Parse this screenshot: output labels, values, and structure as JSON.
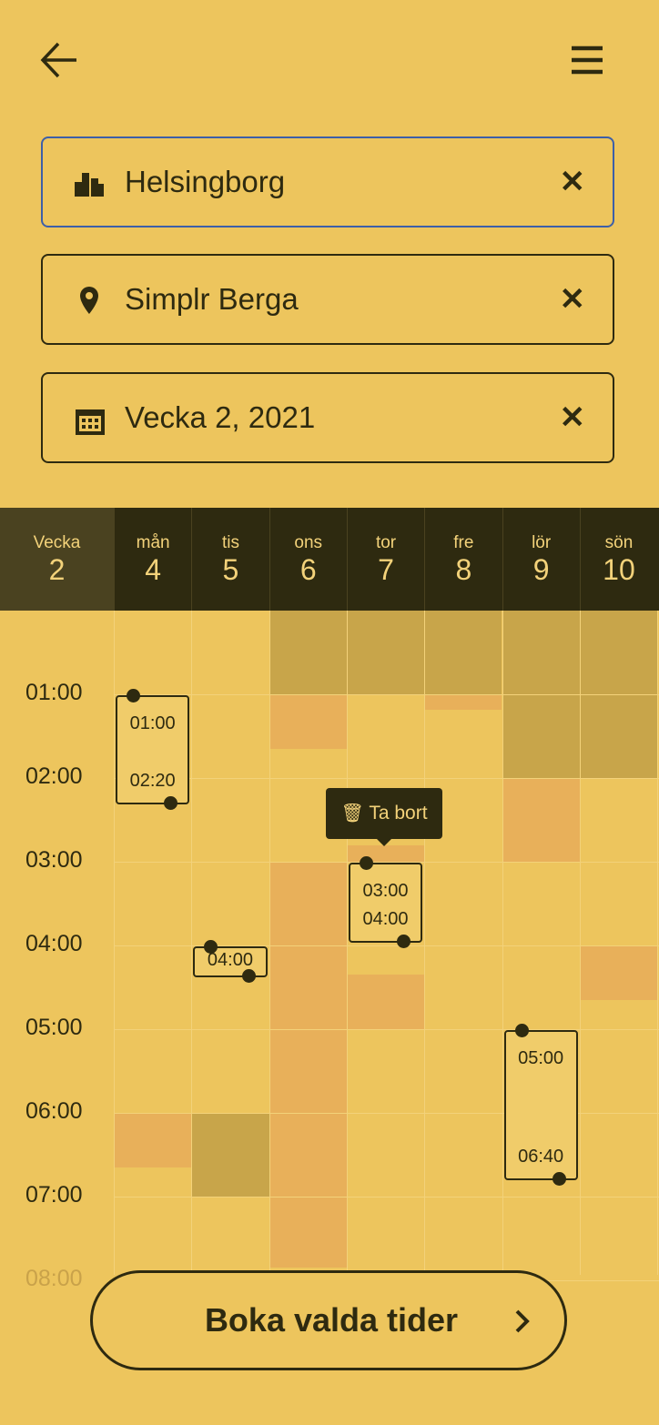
{
  "search_fields": [
    "Helsingborg",
    "Simplr Berga",
    "Vecka 2, 2021"
  ],
  "calendar": {
    "week_label": "Vecka",
    "week_number": "2",
    "days": [
      {
        "name": "mån",
        "date": "4"
      },
      {
        "name": "tis",
        "date": "5"
      },
      {
        "name": "ons",
        "date": "6"
      },
      {
        "name": "tor",
        "date": "7"
      },
      {
        "name": "fre",
        "date": "8"
      },
      {
        "name": "lör",
        "date": "9"
      },
      {
        "name": "sön",
        "date": "10"
      }
    ],
    "times": [
      "01:00",
      "02:00",
      "03:00",
      "04:00",
      "05:00",
      "06:00",
      "07:00",
      "08:00"
    ],
    "selections": [
      {
        "start": "01:00",
        "end": "02:20"
      },
      {
        "start": "04:00"
      },
      {
        "start": "03:00",
        "end": "04:00"
      },
      {
        "start": "05:00",
        "end": "06:40"
      }
    ],
    "tooltip": "Ta bort"
  },
  "button": "Boka valda tider"
}
